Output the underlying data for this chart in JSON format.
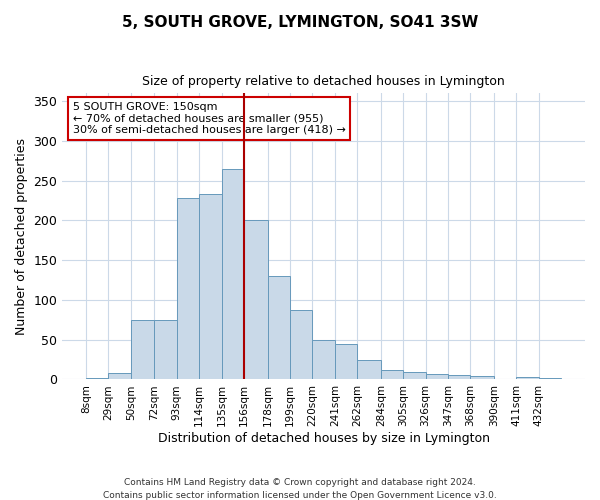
{
  "title": "5, SOUTH GROVE, LYMINGTON, SO41 3SW",
  "subtitle": "Size of property relative to detached houses in Lymington",
  "xlabel": "Distribution of detached houses by size in Lymington",
  "ylabel": "Number of detached properties",
  "bar_labels": [
    "8sqm",
    "29sqm",
    "50sqm",
    "72sqm",
    "93sqm",
    "114sqm",
    "135sqm",
    "156sqm",
    "178sqm",
    "199sqm",
    "220sqm",
    "241sqm",
    "262sqm",
    "284sqm",
    "305sqm",
    "326sqm",
    "347sqm",
    "368sqm",
    "390sqm",
    "411sqm",
    "432sqm"
  ],
  "annotation_line1": "5 SOUTH GROVE: 150sqm",
  "annotation_line2": "← 70% of detached houses are smaller (955)",
  "annotation_line3": "30% of semi-detached houses are larger (418) →",
  "bar_color": "#c9d9e8",
  "bar_edge_color": "#6699bb",
  "line_color": "#aa0000",
  "annotation_box_edge": "#cc0000",
  "background_color": "#ffffff",
  "grid_color": "#ccd9e8",
  "ylim": [
    0,
    360
  ],
  "yticks": [
    0,
    50,
    100,
    150,
    200,
    250,
    300,
    350
  ],
  "bin_edges": [
    8,
    29,
    50,
    72,
    93,
    114,
    135,
    156,
    178,
    199,
    220,
    241,
    262,
    284,
    305,
    326,
    347,
    368,
    390,
    411,
    432,
    453
  ],
  "bar_heights": [
    2,
    8,
    75,
    75,
    228,
    233,
    265,
    200,
    130,
    88,
    50,
    44,
    25,
    12,
    9,
    7,
    5,
    4,
    0,
    3,
    2
  ],
  "footer": "Contains HM Land Registry data © Crown copyright and database right 2024.\nContains public sector information licensed under the Open Government Licence v3.0."
}
